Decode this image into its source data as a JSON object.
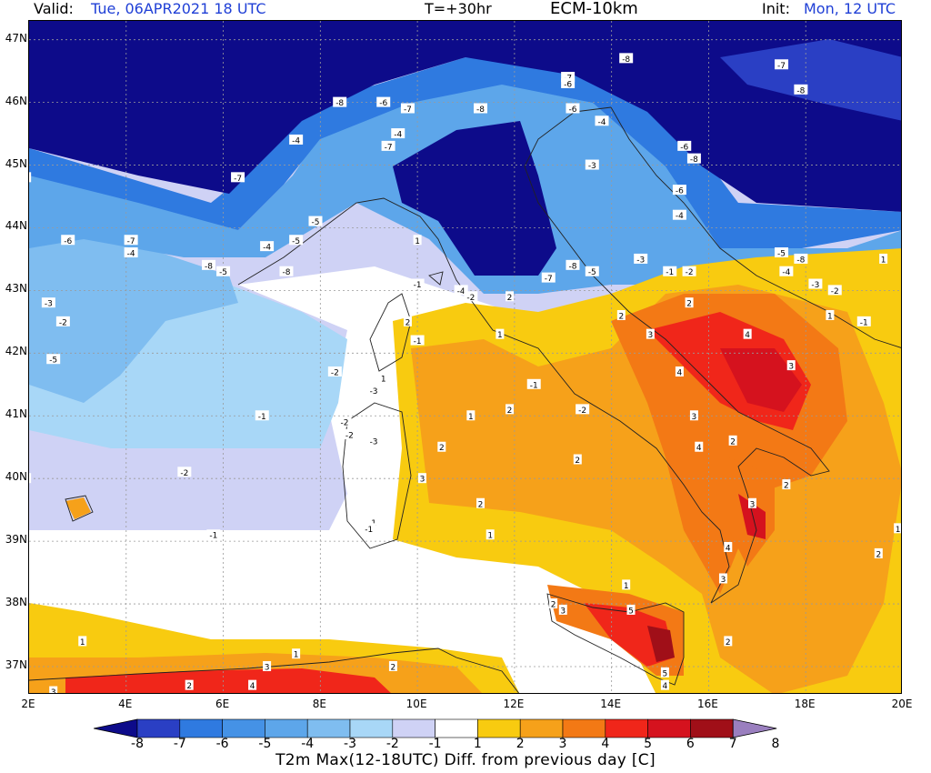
{
  "header": {
    "valid_label": "Valid:",
    "valid_value": "Tue, 06APR2021   18 UTC",
    "lead_time": "T=+30hr",
    "model": "ECM-10km",
    "init_label": "Init:",
    "init_value": "Mon, 12 UTC"
  },
  "axes": {
    "lat_labels": [
      "47N",
      "46N",
      "45N",
      "44N",
      "43N",
      "42N",
      "41N",
      "40N",
      "39N",
      "38N",
      "37N"
    ],
    "lon_labels": [
      "2E",
      "4E",
      "6E",
      "8E",
      "10E",
      "12E",
      "14E",
      "16E",
      "18E",
      "20E"
    ]
  },
  "colorbar": {
    "ticks": [
      "-8",
      "-7",
      "-6",
      "-5",
      "-4",
      "-3",
      "-2",
      "-1",
      "1",
      "2",
      "3",
      "4",
      "5",
      "6",
      "7",
      "8"
    ],
    "colors": [
      "#0d0b8a",
      "#2a3fc4",
      "#2f7ae0",
      "#4592e6",
      "#5da6ea",
      "#7fbdf0",
      "#a8d7f7",
      "#cfd2f5",
      "#ffffff",
      "#f8cb10",
      "#f6a11a",
      "#f37915",
      "#f0261a",
      "#d5121e",
      "#a00f18",
      "#6f0a0d"
    ],
    "title": "T2m Max(12-18UTC) Diff. from previous day [C]"
  },
  "map_labels": [
    {
      "t": "-8",
      "lon": 14.3,
      "lat": 46.7
    },
    {
      "t": "-7",
      "lon": 17.5,
      "lat": 46.6
    },
    {
      "t": "-8",
      "lon": 17.9,
      "lat": 46.2
    },
    {
      "t": "-7",
      "lon": 13.1,
      "lat": 46.4
    },
    {
      "t": "-6",
      "lon": 13.1,
      "lat": 46.3
    },
    {
      "t": "-8",
      "lon": 8.4,
      "lat": 46.0
    },
    {
      "t": "-6",
      "lon": 9.3,
      "lat": 46.0
    },
    {
      "t": "-7",
      "lon": 9.8,
      "lat": 45.9
    },
    {
      "t": "-8",
      "lon": 11.3,
      "lat": 45.9
    },
    {
      "t": "-6",
      "lon": 13.2,
      "lat": 45.9
    },
    {
      "t": "-4",
      "lon": 13.8,
      "lat": 45.7
    },
    {
      "t": "-4",
      "lon": 7.5,
      "lat": 45.4
    },
    {
      "t": "-4",
      "lon": 9.6,
      "lat": 45.5
    },
    {
      "t": "-7",
      "lon": 9.4,
      "lat": 45.3
    },
    {
      "t": "-3",
      "lon": 13.6,
      "lat": 45.0
    },
    {
      "t": "-6",
      "lon": 15.5,
      "lat": 45.3
    },
    {
      "t": "-8",
      "lon": 15.7,
      "lat": 45.1
    },
    {
      "t": "-8",
      "lon": 1.9,
      "lat": 44.8
    },
    {
      "t": "-7",
      "lon": 6.3,
      "lat": 44.8
    },
    {
      "t": "-6",
      "lon": 15.4,
      "lat": 44.6
    },
    {
      "t": "-4",
      "lon": 15.4,
      "lat": 44.2
    },
    {
      "t": "-5",
      "lon": 7.9,
      "lat": 44.1
    },
    {
      "t": "-7",
      "lon": 4.1,
      "lat": 43.8
    },
    {
      "t": "-6",
      "lon": 2.8,
      "lat": 43.8
    },
    {
      "t": "-5",
      "lon": 7.5,
      "lat": 43.8
    },
    {
      "t": "-4",
      "lon": 6.9,
      "lat": 43.7
    },
    {
      "t": "-4",
      "lon": 4.1,
      "lat": 43.6
    },
    {
      "t": "-8",
      "lon": 5.7,
      "lat": 43.4
    },
    {
      "t": "-5",
      "lon": 6.0,
      "lat": 43.3
    },
    {
      "t": "-8",
      "lon": 7.3,
      "lat": 43.3
    },
    {
      "t": "-3",
      "lon": 14.6,
      "lat": 43.5
    },
    {
      "t": "-5",
      "lon": 17.5,
      "lat": 43.6
    },
    {
      "t": "-8",
      "lon": 17.9,
      "lat": 43.5
    },
    {
      "t": "-7",
      "lon": 12.7,
      "lat": 43.2
    },
    {
      "t": "-8",
      "lon": 13.2,
      "lat": 43.4
    },
    {
      "t": "-5",
      "lon": 13.6,
      "lat": 43.3
    },
    {
      "t": "-1",
      "lon": 15.2,
      "lat": 43.3
    },
    {
      "t": "-2",
      "lon": 15.6,
      "lat": 43.3
    },
    {
      "t": "-4",
      "lon": 17.6,
      "lat": 43.3
    },
    {
      "t": "-3",
      "lon": 18.2,
      "lat": 43.1
    },
    {
      "t": "-2",
      "lon": 18.6,
      "lat": 43.0
    },
    {
      "t": "1",
      "lon": 19.6,
      "lat": 43.5
    },
    {
      "t": "1",
      "lon": 10.0,
      "lat": 43.8
    },
    {
      "t": "-1",
      "lon": 10.0,
      "lat": 43.1
    },
    {
      "t": "-4",
      "lon": 10.9,
      "lat": 43.0
    },
    {
      "t": "-2",
      "lon": 11.1,
      "lat": 42.9
    },
    {
      "t": "2",
      "lon": 11.9,
      "lat": 42.9
    },
    {
      "t": "-3",
      "lon": 2.4,
      "lat": 42.8
    },
    {
      "t": "-2",
      "lon": 2.7,
      "lat": 42.5
    },
    {
      "t": "2",
      "lon": 9.8,
      "lat": 42.5
    },
    {
      "t": "-1",
      "lon": 10.0,
      "lat": 42.2
    },
    {
      "t": "1",
      "lon": 11.7,
      "lat": 42.3
    },
    {
      "t": "2",
      "lon": 14.2,
      "lat": 42.6
    },
    {
      "t": "3",
      "lon": 14.8,
      "lat": 42.3
    },
    {
      "t": "4",
      "lon": 16.8,
      "lat": 42.3
    },
    {
      "t": "2",
      "lon": 15.6,
      "lat": 42.8
    },
    {
      "t": "1",
      "lon": 18.5,
      "lat": 42.6
    },
    {
      "t": "-1",
      "lon": 19.2,
      "lat": 42.5
    },
    {
      "t": "-5",
      "lon": 2.5,
      "lat": 41.9
    },
    {
      "t": "-2",
      "lon": 8.3,
      "lat": 41.7
    },
    {
      "t": "1",
      "lon": 9.3,
      "lat": 41.6
    },
    {
      "t": "-3",
      "lon": 9.1,
      "lat": 41.4
    },
    {
      "t": "4",
      "lon": 15.4,
      "lat": 41.7
    },
    {
      "t": "3",
      "lon": 17.7,
      "lat": 41.8
    },
    {
      "t": "-1",
      "lon": 12.4,
      "lat": 41.5
    },
    {
      "t": "-2",
      "lon": 13.4,
      "lat": 41.1
    },
    {
      "t": "-1",
      "lon": 6.8,
      "lat": 41.0
    },
    {
      "t": "-2",
      "lon": 8.5,
      "lat": 40.9
    },
    {
      "t": "-2",
      "lon": 8.6,
      "lat": 40.7
    },
    {
      "t": "-3",
      "lon": 9.1,
      "lat": 40.6
    },
    {
      "t": "1",
      "lon": 11.1,
      "lat": 41.0
    },
    {
      "t": "2",
      "lon": 11.9,
      "lat": 41.1
    },
    {
      "t": "3",
      "lon": 15.7,
      "lat": 41.0
    },
    {
      "t": "4",
      "lon": 15.8,
      "lat": 40.5
    },
    {
      "t": "2",
      "lon": 16.5,
      "lat": 40.6
    },
    {
      "t": "2",
      "lon": 10.5,
      "lat": 40.5
    },
    {
      "t": "3",
      "lon": 10.1,
      "lat": 40.0
    },
    {
      "t": "2",
      "lon": 13.3,
      "lat": 40.3
    },
    {
      "t": "-2",
      "lon": 5.2,
      "lat": 40.1
    },
    {
      "t": "-1",
      "lon": 1.9,
      "lat": 40.0
    },
    {
      "t": "2",
      "lon": 17.6,
      "lat": 39.9
    },
    {
      "t": "2",
      "lon": 11.3,
      "lat": 39.6
    },
    {
      "t": "3",
      "lon": 16.9,
      "lat": 39.6
    },
    {
      "t": "1",
      "lon": 9.1,
      "lat": 39.3
    },
    {
      "t": "-1",
      "lon": 9.0,
      "lat": 39.2
    },
    {
      "t": "-1",
      "lon": 5.8,
      "lat": 39.1
    },
    {
      "t": "1",
      "lon": 11.5,
      "lat": 39.1
    },
    {
      "t": "4",
      "lon": 16.4,
      "lat": 38.9
    },
    {
      "t": "1",
      "lon": 19.9,
      "lat": 39.2
    },
    {
      "t": "2",
      "lon": 19.5,
      "lat": 38.8
    },
    {
      "t": "3",
      "lon": 16.3,
      "lat": 38.4
    },
    {
      "t": "1",
      "lon": 14.3,
      "lat": 38.3
    },
    {
      "t": "3",
      "lon": 13.0,
      "lat": 37.9
    },
    {
      "t": "2",
      "lon": 12.8,
      "lat": 38.0
    },
    {
      "t": "5",
      "lon": 14.4,
      "lat": 37.9
    },
    {
      "t": "2",
      "lon": 16.4,
      "lat": 37.4
    },
    {
      "t": "1",
      "lon": 3.1,
      "lat": 37.4
    },
    {
      "t": "3",
      "lon": 6.9,
      "lat": 37.0
    },
    {
      "t": "1",
      "lon": 7.5,
      "lat": 37.2
    },
    {
      "t": "2",
      "lon": 9.5,
      "lat": 37.0
    },
    {
      "t": "3",
      "lon": 2.5,
      "lat": 36.6
    },
    {
      "t": "2",
      "lon": 5.3,
      "lat": 36.7
    },
    {
      "t": "4",
      "lon": 6.6,
      "lat": 36.7
    },
    {
      "t": "5",
      "lon": 15.1,
      "lat": 36.9
    },
    {
      "t": "4",
      "lon": 15.1,
      "lat": 36.7
    }
  ]
}
